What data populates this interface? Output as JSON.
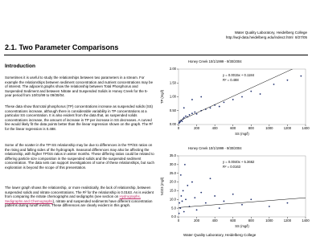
{
  "header": {
    "org": "Water Quality Laboratory, Heidelberg College",
    "url": "http://wql-data.heidelberg.edu/index2.html",
    "date": "8/27/05"
  },
  "title": "2.1. Two Parameter Comparisons",
  "section_heading": "Introduction",
  "paragraphs": [
    [
      "Sometimes it is useful to study the relationships between two parameters in a stream. For example the relationships between sediment concentration and nutrient concentrations may be of interest. The adjacent graphs show the relationship between Total Phosphorus and Suspended Sediment and between Nitrate and Suspended Solids in Honey Creek for the 5-year period from 10/01/99 to 09/30/04."
    ],
    [
      "These data show that total phosphorus (TP) concentrations increase as suspended solids (SS) concentrations increase, although there is considerable variability in TP concentrations at a particular SS concentration. It is also evident from the data that, as suspended solids concentrations increase, the amount of increase in TP per increase in SS decreases. A curved line would likely fit the data points better than the linear regression shown on the graph. The R² for the linear regression is 0.488."
    ],
    [
      "Some of the scatter in the TP-SS relationship may be due to differences in the TP/SS ratios on the rising and falling sides of the hydrograph. Seasonal differences may also be affecting the relationship, with higher TP/SS ratios in winter months. These differing ratios could be related to differing particle size composition in the suspended solids and the suspended sediment concentration. The data sets can support investigations of some of these relationships, but such exploration is beyond the scope of this presentation."
    ],
    [
      "The lower graph shows the relationship, or more realistically, the lack of relationship, between suspended solids and nitrate concentrations. The R² for the relationship is 0.0163. As is evident from comparing the nitrate chemographs and sedigraphs (see section on ",
      "Hydrographs, Sedigraphs and Chemographs",
      "), nitrate and suspended sediments have different concentration patterns during runoff events. These differences are clearly evident in this graph."
    ]
  ],
  "footer": "Water Quality Laboratory, Heidelberg College",
  "chart_data": [
    {
      "type": "scatter",
      "title": "Honey Creek     10/1/1999 - 9/30/2004",
      "x_label": "SS (mg/l)",
      "y_label": "TP (mg/l)",
      "xlim": [
        0,
        1400
      ],
      "ylim": [
        0,
        2
      ],
      "xticks": [
        0,
        200,
        400,
        600,
        800,
        1000,
        1200,
        1400
      ],
      "yticks": [
        {
          "value": 0,
          "label": "0.00"
        },
        {
          "value": 0.5,
          "label": "0.50"
        },
        {
          "value": 1,
          "label": "1.00"
        },
        {
          "value": 1.5,
          "label": "1.50"
        },
        {
          "value": 2,
          "label": "2.00"
        }
      ],
      "equation": "y = 0.0015x + 0.1184",
      "r2": "R² = 0.488",
      "trendline": {
        "slope": 0.0015,
        "intercept": 0.1184
      },
      "series": [
        {
          "color": "#1f2f6e",
          "x": [
            5,
            10,
            20,
            30,
            40,
            50,
            60,
            80,
            100,
            120,
            150,
            180,
            200,
            250,
            300,
            350,
            400,
            450,
            500,
            600,
            700,
            800,
            900,
            1050,
            1200,
            1350,
            60,
            150,
            250
          ],
          "y": [
            0.05,
            0.08,
            0.1,
            0.15,
            0.12,
            0.2,
            0.25,
            0.3,
            0.28,
            0.35,
            0.4,
            0.45,
            0.38,
            0.5,
            0.55,
            0.6,
            0.7,
            0.65,
            0.8,
            0.9,
            1.0,
            1.2,
            1.1,
            1.45,
            1.6,
            1.75,
            0.6,
            0.9,
            1.0
          ]
        }
      ]
    },
    {
      "type": "scatter",
      "title": "Honey Creek     10/1/1999 - 9/30/2004",
      "x_label": "SS (mg/l)",
      "y_label": "NO23 (mg/l)",
      "xlim": [
        0,
        1400
      ],
      "ylim": [
        0,
        35
      ],
      "xticks": [
        0,
        200,
        400,
        600,
        800,
        1000,
        1200,
        1400
      ],
      "yticks": [
        {
          "value": 0,
          "label": "0.0"
        },
        {
          "value": 5,
          "label": "5.0"
        },
        {
          "value": 10,
          "label": "10.0"
        },
        {
          "value": 15,
          "label": "15.0"
        },
        {
          "value": 20,
          "label": "20.0"
        },
        {
          "value": 25,
          "label": "25.0"
        },
        {
          "value": 30,
          "label": "30.0"
        },
        {
          "value": 35,
          "label": "35.0"
        }
      ],
      "equation": "y = 0.0040x + 5.3662",
      "r2": "R² = 0.0163",
      "trendline": {
        "slope": 0.004,
        "intercept": 5.3662
      },
      "series": [
        {
          "color": "#1f2f6e",
          "x": [
            5,
            10,
            20,
            30,
            40,
            50,
            60,
            80,
            100,
            120,
            150,
            180,
            200,
            250,
            300,
            350,
            400,
            450,
            500,
            600,
            700,
            800,
            1000,
            1200,
            25,
            70
          ],
          "y": [
            2,
            8,
            5,
            12,
            9,
            15,
            3,
            10,
            18,
            6,
            20,
            11,
            4,
            14,
            8,
            22,
            12,
            5,
            9,
            13,
            7,
            10,
            6,
            8,
            24,
            30
          ]
        }
      ]
    }
  ]
}
